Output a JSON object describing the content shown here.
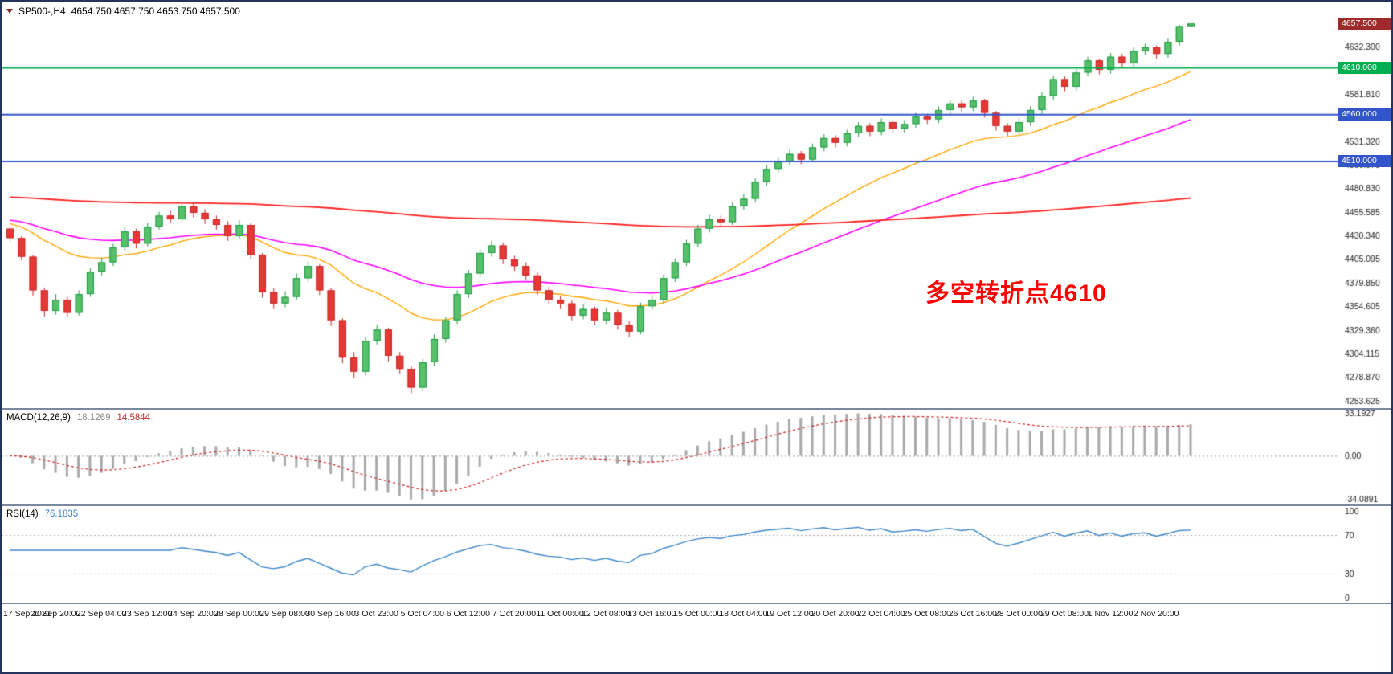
{
  "window": {
    "symbol_tf": "SP500-,H4",
    "ohlc": "4654.750 4657.750 4653.750 4657.500"
  },
  "annotation": {
    "text": "多空转折点4610",
    "color": "#FF0000"
  },
  "chart_data": [
    {
      "type": "candlestick",
      "title": "SP500-,H4",
      "ylim": [
        4246,
        4681
      ],
      "y_ticks": [
        4632.3,
        4607.055,
        4581.81,
        4556.565,
        4531.32,
        4506.075,
        4480.83,
        4455.585,
        4430.34,
        4405.095,
        4379.85,
        4354.605,
        4329.36,
        4304.115,
        4278.87,
        4253.625
      ],
      "x_labels": [
        "17 Sep 2021",
        "20 Sep 20:00",
        "22 Sep 04:00",
        "23 Sep 12:00",
        "24 Sep 20:00",
        "28 Sep 00:00",
        "29 Sep 08:00",
        "30 Sep 16:00",
        "3 Oct 23:00",
        "5 Oct 04:00",
        "6 Oct 12:00",
        "7 Oct 20:00",
        "11 Oct 00:00",
        "12 Oct 08:00",
        "13 Oct 16:00",
        "15 Oct 00:00",
        "18 Oct 04:00",
        "19 Oct 12:00",
        "20 Oct 20:00",
        "22 Oct 04:00",
        "25 Oct 08:00",
        "26 Oct 16:00",
        "28 Oct 00:00",
        "29 Oct 08:00",
        "1 Nov 12:00",
        "2 Nov 20:00"
      ],
      "x_label_every": 4,
      "colors": {
        "up_fill": "#56C06A",
        "up_stroke": "#1F9A44",
        "down_fill": "#E53935",
        "down_stroke": "#C62828"
      },
      "ma_lines": [
        {
          "name": "ma-fast-orange",
          "period": 20,
          "seed": 4445,
          "color": "#FFA500",
          "width": 1.4
        },
        {
          "name": "ma-mid-magenta",
          "period": 45,
          "seed": 4448,
          "color": "#FF00FF",
          "width": 1.6
        },
        {
          "name": "ma-slow-red",
          "period": 300,
          "seed": 4472,
          "color": "#FF2222",
          "width": 1.8
        }
      ],
      "hlines": [
        {
          "value": 4610,
          "label": "4610.000",
          "color": "#00B050"
        },
        {
          "value": 4560,
          "label": "4560.000",
          "color": "#3355CC"
        },
        {
          "value": 4510,
          "label": "4510.000",
          "color": "#3355CC"
        }
      ],
      "current_price": {
        "value": 4657.5,
        "label": "4657.500",
        "tag_color": "#9E2A2A"
      },
      "candles": [
        [
          4438,
          4441,
          4424,
          4428
        ],
        [
          4428,
          4430,
          4404,
          4408
        ],
        [
          4408,
          4410,
          4366,
          4372
        ],
        [
          4372,
          4375,
          4344,
          4350
        ],
        [
          4350,
          4368,
          4346,
          4362
        ],
        [
          4362,
          4366,
          4343,
          4348
        ],
        [
          4348,
          4372,
          4345,
          4368
        ],
        [
          4368,
          4396,
          4365,
          4392
        ],
        [
          4392,
          4407,
          4388,
          4402
        ],
        [
          4402,
          4422,
          4398,
          4418
        ],
        [
          4418,
          4439,
          4414,
          4435
        ],
        [
          4435,
          4438,
          4417,
          4422
        ],
        [
          4422,
          4444,
          4419,
          4440
        ],
        [
          4440,
          4456,
          4437,
          4452
        ],
        [
          4452,
          4457,
          4444,
          4448
        ],
        [
          4448,
          4466,
          4445,
          4462
        ],
        [
          4462,
          4465,
          4450,
          4455
        ],
        [
          4455,
          4459,
          4443,
          4448
        ],
        [
          4448,
          4452,
          4437,
          4442
        ],
        [
          4442,
          4446,
          4425,
          4430
        ],
        [
          4430,
          4447,
          4427,
          4442
        ],
        [
          4442,
          4444,
          4405,
          4410
        ],
        [
          4410,
          4412,
          4364,
          4370
        ],
        [
          4370,
          4374,
          4352,
          4358
        ],
        [
          4358,
          4371,
          4354,
          4365
        ],
        [
          4365,
          4390,
          4362,
          4385
        ],
        [
          4385,
          4403,
          4381,
          4398
        ],
        [
          4398,
          4400,
          4367,
          4372
        ],
        [
          4372,
          4375,
          4334,
          4340
        ],
        [
          4340,
          4342,
          4294,
          4300
        ],
        [
          4300,
          4306,
          4278,
          4285
        ],
        [
          4285,
          4322,
          4281,
          4318
        ],
        [
          4318,
          4335,
          4314,
          4330
        ],
        [
          4330,
          4332,
          4296,
          4302
        ],
        [
          4302,
          4306,
          4283,
          4288
        ],
        [
          4288,
          4291,
          4262,
          4268
        ],
        [
          4268,
          4299,
          4264,
          4295
        ],
        [
          4295,
          4325,
          4291,
          4320
        ],
        [
          4320,
          4344,
          4316,
          4340
        ],
        [
          4340,
          4372,
          4336,
          4368
        ],
        [
          4368,
          4394,
          4364,
          4390
        ],
        [
          4390,
          4416,
          4386,
          4412
        ],
        [
          4412,
          4425,
          4408,
          4420
        ],
        [
          4420,
          4423,
          4400,
          4405
        ],
        [
          4405,
          4409,
          4393,
          4398
        ],
        [
          4398,
          4402,
          4383,
          4388
        ],
        [
          4388,
          4391,
          4367,
          4372
        ],
        [
          4372,
          4376,
          4357,
          4362
        ],
        [
          4362,
          4366,
          4352,
          4358
        ],
        [
          4358,
          4361,
          4340,
          4345
        ],
        [
          4345,
          4357,
          4341,
          4352
        ],
        [
          4352,
          4355,
          4335,
          4340
        ],
        [
          4340,
          4353,
          4336,
          4348
        ],
        [
          4348,
          4351,
          4330,
          4335
        ],
        [
          4335,
          4339,
          4322,
          4328
        ],
        [
          4328,
          4359,
          4325,
          4355
        ],
        [
          4355,
          4367,
          4351,
          4362
        ],
        [
          4362,
          4389,
          4358,
          4385
        ],
        [
          4385,
          4406,
          4381,
          4402
        ],
        [
          4402,
          4426,
          4398,
          4422
        ],
        [
          4422,
          4442,
          4418,
          4438
        ],
        [
          4438,
          4453,
          4434,
          4448
        ],
        [
          4448,
          4452,
          4440,
          4445
        ],
        [
          4445,
          4466,
          4442,
          4462
        ],
        [
          4462,
          4475,
          4458,
          4470
        ],
        [
          4470,
          4492,
          4466,
          4488
        ],
        [
          4488,
          4506,
          4484,
          4502
        ],
        [
          4502,
          4514,
          4498,
          4510
        ],
        [
          4510,
          4523,
          4506,
          4518
        ],
        [
          4518,
          4521,
          4507,
          4512
        ],
        [
          4512,
          4529,
          4509,
          4525
        ],
        [
          4525,
          4539,
          4521,
          4535
        ],
        [
          4535,
          4538,
          4525,
          4530
        ],
        [
          4530,
          4544,
          4526,
          4540
        ],
        [
          4540,
          4552,
          4536,
          4548
        ],
        [
          4548,
          4551,
          4537,
          4542
        ],
        [
          4542,
          4556,
          4538,
          4552
        ],
        [
          4552,
          4555,
          4540,
          4545
        ],
        [
          4545,
          4554,
          4541,
          4550
        ],
        [
          4550,
          4562,
          4546,
          4558
        ],
        [
          4558,
          4561,
          4550,
          4555
        ],
        [
          4555,
          4569,
          4551,
          4565
        ],
        [
          4565,
          4576,
          4561,
          4572
        ],
        [
          4572,
          4575,
          4563,
          4568
        ],
        [
          4568,
          4579,
          4564,
          4575
        ],
        [
          4575,
          4577,
          4557,
          4562
        ],
        [
          4562,
          4564,
          4543,
          4548
        ],
        [
          4548,
          4551,
          4537,
          4542
        ],
        [
          4542,
          4556,
          4538,
          4552
        ],
        [
          4552,
          4569,
          4548,
          4565
        ],
        [
          4565,
          4584,
          4561,
          4580
        ],
        [
          4580,
          4602,
          4576,
          4598
        ],
        [
          4598,
          4601,
          4585,
          4590
        ],
        [
          4590,
          4609,
          4586,
          4605
        ],
        [
          4605,
          4622,
          4601,
          4618
        ],
        [
          4618,
          4620,
          4603,
          4608
        ],
        [
          4608,
          4626,
          4604,
          4622
        ],
        [
          4622,
          4625,
          4610,
          4615
        ],
        [
          4615,
          4632,
          4611,
          4628
        ],
        [
          4628,
          4636,
          4624,
          4632
        ],
        [
          4632,
          4634,
          4620,
          4625
        ],
        [
          4625,
          4642,
          4621,
          4638
        ],
        [
          4638,
          4656,
          4634,
          4654.75
        ],
        [
          4654.75,
          4657.75,
          4653.75,
          4657.5
        ]
      ]
    },
    {
      "type": "macd",
      "label": "MACD(12,26,9)",
      "value_main": "18.1269",
      "value_signal": "14.5844",
      "params": [
        12,
        26,
        9
      ],
      "ylim": [
        36,
        -38
      ],
      "axis_ticks": [
        {
          "label": "33.1927",
          "value": 33.1927
        },
        {
          "label": "0.00",
          "value": 0
        },
        {
          "label": "-34.0891",
          "value": -34.0891
        }
      ],
      "pos_max": 33.1927,
      "neg_min": -34.0891,
      "hist_color": "#A9A9A9",
      "signal_color": "#D02020",
      "zero_color": "#999999"
    },
    {
      "type": "rsi",
      "label": "RSI(14)",
      "value": "76.1835",
      "period": 14,
      "ylim": [
        0,
        100
      ],
      "levels": [
        70,
        30
      ],
      "axis_ticks": [
        {
          "label": "100",
          "value": 100
        },
        {
          "label": "70",
          "value": 70
        },
        {
          "label": "30",
          "value": 30
        },
        {
          "label": "0",
          "value": 0
        }
      ],
      "line_color": "#3E86C8",
      "level_color": "#AAAAAA"
    }
  ]
}
